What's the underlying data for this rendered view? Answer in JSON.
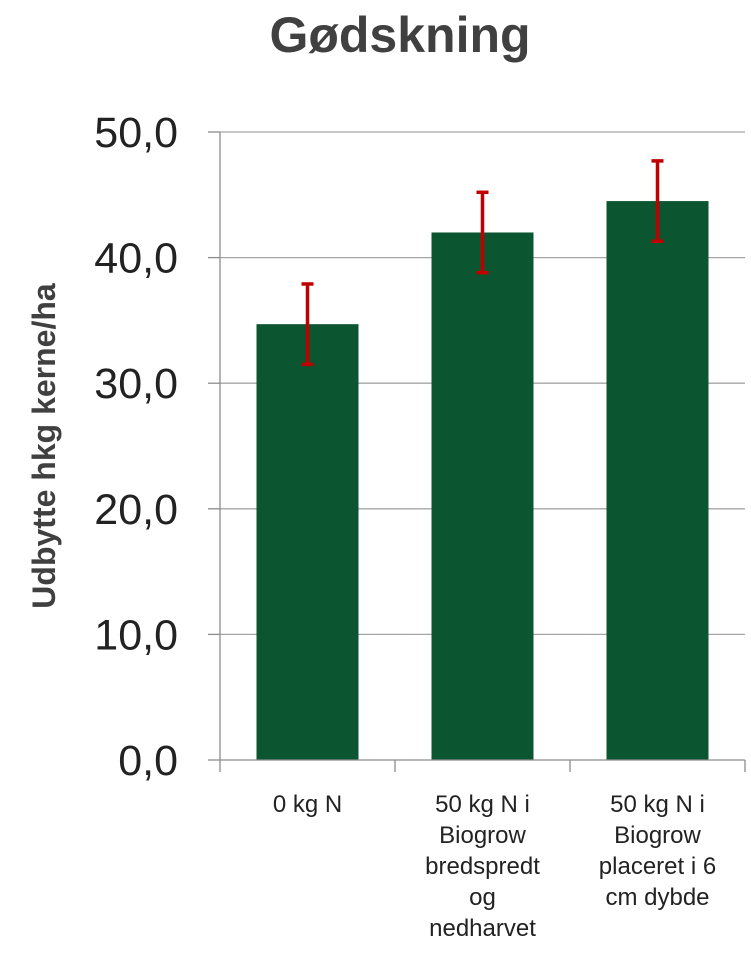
{
  "chart_data": {
    "type": "bar",
    "title": "Gødskning",
    "xlabel": "",
    "ylabel": "Udbytte hkg kerne/ha",
    "ylim": [
      0,
      50
    ],
    "yticks": [
      "0,0",
      "10,0",
      "20,0",
      "30,0",
      "40,0",
      "50,0"
    ],
    "grid": true,
    "categories": [
      [
        "0 kg N"
      ],
      [
        "50 kg N i",
        "Biogrow",
        "bredspredt",
        "og",
        "nedharvet"
      ],
      [
        "50 kg N i",
        "Biogrow",
        "placeret i 6",
        "cm dybde"
      ]
    ],
    "values": [
      34.7,
      42.0,
      44.5
    ],
    "error_low": [
      31.5,
      38.8,
      41.3
    ],
    "error_high": [
      37.9,
      45.2,
      47.7
    ],
    "bar_color": "#0b5530",
    "error_color": "#c00000"
  }
}
